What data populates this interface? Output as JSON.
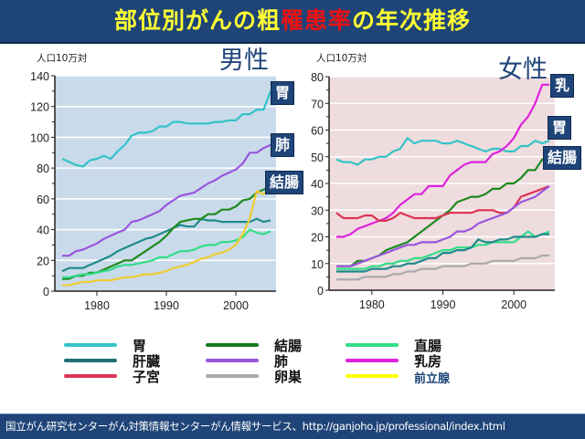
{
  "title": {
    "part1": "部位別がんの粗",
    "part2": "罹患率",
    "part3": "の年次推移"
  },
  "footer": {
    "source": "国立がん研究センターがん対策情報センターがん情報サービス、http://ganjoho.jp/professional/index.html"
  },
  "colors": {
    "header_bg": "#1f4478",
    "title_text": "#ffff33",
    "title_highlight": "#ee1111",
    "male_plot_bg": "#c9dbea",
    "female_plot_bg": "#efdcde"
  },
  "chart_data": [
    {
      "type": "line",
      "title": "男性",
      "ylabel": "人口10万対",
      "xlabel": "",
      "xlim": [
        1975,
        2005
      ],
      "ylim": [
        0,
        140
      ],
      "yticks": [
        0,
        20,
        40,
        60,
        80,
        100,
        120,
        140
      ],
      "xticks": [
        1980,
        1990,
        2000
      ],
      "grid": true,
      "tags": [
        {
          "label": "胃",
          "series": "胃"
        },
        {
          "label": "肺",
          "series": "肺"
        },
        {
          "label": "結腸",
          "series": "結腸"
        }
      ],
      "x": [
        1975,
        1976,
        1977,
        1978,
        1979,
        1980,
        1981,
        1982,
        1983,
        1984,
        1985,
        1986,
        1987,
        1988,
        1989,
        1990,
        1991,
        1992,
        1993,
        1994,
        1995,
        1996,
        1997,
        1998,
        1999,
        2000,
        2001,
        2002,
        2003,
        2004,
        2005
      ],
      "series": [
        {
          "name": "胃",
          "color": "#33c3c8",
          "values": [
            86,
            84,
            82,
            81,
            85,
            86,
            88,
            86,
            91,
            95,
            101,
            103,
            103,
            104,
            107,
            107,
            110,
            110,
            109,
            109,
            109,
            109,
            110,
            110,
            111,
            111,
            115,
            115,
            118,
            118,
            130
          ]
        },
        {
          "name": "肺",
          "color": "#9955dd",
          "values": [
            23,
            23,
            26,
            27,
            29,
            31,
            34,
            36,
            38,
            40,
            45,
            46,
            48,
            50,
            52,
            56,
            59,
            62,
            63,
            64,
            67,
            70,
            72,
            75,
            77,
            79,
            83,
            90,
            90,
            93,
            95
          ]
        },
        {
          "name": "肝臓",
          "color": "#1f8a8a",
          "values": [
            13,
            15,
            15,
            15,
            17,
            19,
            21,
            23,
            26,
            28,
            30,
            32,
            34,
            35,
            37,
            39,
            41,
            43,
            42,
            42,
            47,
            46,
            46,
            45,
            45,
            45,
            45,
            45,
            47,
            45,
            46
          ]
        },
        {
          "name": "結腸",
          "color": "#1e8a1e",
          "values": [
            8,
            8,
            10,
            10,
            12,
            12,
            14,
            16,
            18,
            20,
            20,
            23,
            26,
            29,
            32,
            36,
            41,
            45,
            46,
            47,
            47,
            50,
            50,
            53,
            53,
            55,
            59,
            60,
            64,
            66,
            68
          ]
        },
        {
          "name": "直腸",
          "color": "#33dd88",
          "values": [
            9,
            9,
            10,
            11,
            11,
            12,
            13,
            14,
            16,
            17,
            17,
            18,
            19,
            20,
            22,
            22,
            24,
            26,
            26,
            27,
            29,
            30,
            30,
            32,
            32,
            33,
            35,
            40,
            38,
            37,
            39
          ]
        },
        {
          "name": "前立腺",
          "color": "#eecc33",
          "values": [
            4,
            4,
            5,
            6,
            6,
            7,
            7,
            7,
            8,
            9,
            9,
            10,
            11,
            11,
            12,
            13,
            15,
            16,
            17,
            19,
            21,
            22,
            24,
            25,
            27,
            30,
            37,
            47,
            65,
            63,
            66
          ]
        }
      ]
    },
    {
      "type": "line",
      "title": "女性",
      "ylabel": "人口10万対",
      "xlabel": "",
      "xlim": [
        1975,
        2005
      ],
      "ylim": [
        0,
        80
      ],
      "yticks": [
        0,
        10,
        20,
        30,
        40,
        50,
        60,
        70,
        80
      ],
      "xticks": [
        1980,
        1990,
        2000
      ],
      "grid": true,
      "tags": [
        {
          "label": "乳",
          "series": "乳房"
        },
        {
          "label": "胃",
          "series": "胃"
        },
        {
          "label": "結腸",
          "series": "結腸"
        }
      ],
      "x": [
        1975,
        1976,
        1977,
        1978,
        1979,
        1980,
        1981,
        1982,
        1983,
        1984,
        1985,
        1986,
        1987,
        1988,
        1989,
        1990,
        1991,
        1992,
        1993,
        1994,
        1995,
        1996,
        1997,
        1998,
        1999,
        2000,
        2001,
        2002,
        2003,
        2004,
        2005
      ],
      "series": [
        {
          "name": "胃",
          "color": "#33c3c8",
          "values": [
            49,
            48,
            48,
            47,
            49,
            49,
            50,
            50,
            52,
            53,
            57,
            55,
            56,
            56,
            56,
            55,
            55,
            56,
            55,
            54,
            53,
            52,
            53,
            53,
            52,
            52,
            54,
            54,
            56,
            55,
            56
          ]
        },
        {
          "name": "乳房",
          "color": "#dd22dd",
          "values": [
            20,
            20,
            21,
            23,
            24,
            25,
            26,
            27,
            29,
            32,
            34,
            36,
            36,
            39,
            39,
            39,
            43,
            45,
            47,
            48,
            48,
            48,
            51,
            52,
            54,
            57,
            62,
            65,
            70,
            77,
            77
          ]
        },
        {
          "name": "結腸",
          "color": "#1e8a1e",
          "values": [
            9,
            9,
            9,
            11,
            11,
            12,
            13,
            15,
            16,
            17,
            18,
            20,
            22,
            24,
            26,
            28,
            30,
            33,
            34,
            35,
            35,
            36,
            38,
            38,
            40,
            40,
            42,
            45,
            45,
            49,
            47
          ]
        },
        {
          "name": "子宮",
          "color": "#dd3355",
          "values": [
            29,
            27,
            27,
            27,
            28,
            28,
            26,
            26,
            27,
            29,
            28,
            27,
            27,
            27,
            27,
            28,
            29,
            29,
            29,
            29,
            30,
            30,
            30,
            29,
            29,
            31,
            35,
            36,
            37,
            38,
            39
          ]
        },
        {
          "name": "肺",
          "color": "#9955dd",
          "values": [
            9,
            9,
            9,
            10,
            11,
            12,
            13,
            14,
            15,
            16,
            17,
            17,
            18,
            18,
            18,
            19,
            20,
            22,
            22,
            23,
            25,
            26,
            27,
            28,
            29,
            31,
            33,
            34,
            35,
            37,
            39
          ]
        },
        {
          "name": "直腸",
          "color": "#33dd88",
          "values": [
            8,
            8,
            8,
            8,
            8,
            9,
            9,
            10,
            10,
            11,
            11,
            12,
            12,
            13,
            14,
            15,
            15,
            16,
            16,
            16,
            17,
            17,
            18,
            18,
            18,
            18,
            20,
            22,
            20,
            21,
            22
          ]
        },
        {
          "name": "肝臓",
          "color": "#1f8a8a",
          "values": [
            7,
            7,
            7,
            7,
            7,
            8,
            8,
            8,
            9,
            9,
            10,
            10,
            11,
            12,
            12,
            14,
            14,
            15,
            15,
            16,
            19,
            18,
            18,
            19,
            19,
            20,
            20,
            20,
            20,
            21,
            21
          ]
        },
        {
          "name": "卵巣",
          "color": "#aaaaaa",
          "values": [
            4,
            4,
            4,
            4,
            5,
            5,
            5,
            5,
            6,
            6,
            7,
            7,
            8,
            8,
            8,
            9,
            9,
            9,
            9,
            10,
            10,
            10,
            11,
            11,
            11,
            11,
            12,
            12,
            12,
            13,
            13
          ]
        }
      ]
    }
  ],
  "legend": [
    {
      "label": "胃",
      "color": "#33c3c8"
    },
    {
      "label": "肝臓",
      "color": "#1f7070"
    },
    {
      "label": "子宮",
      "color": "#dd3355"
    },
    {
      "label": "結腸",
      "color": "#1a7a1a"
    },
    {
      "label": "肺",
      "color": "#9955dd"
    },
    {
      "label": "卵巣",
      "color": "#aaaaaa"
    },
    {
      "label": "直腸",
      "color": "#33dd88"
    },
    {
      "label": "乳房",
      "color": "#dd22dd"
    },
    {
      "label": "前立腺",
      "color": "#ffff00",
      "label_color": "#1f4478"
    }
  ]
}
